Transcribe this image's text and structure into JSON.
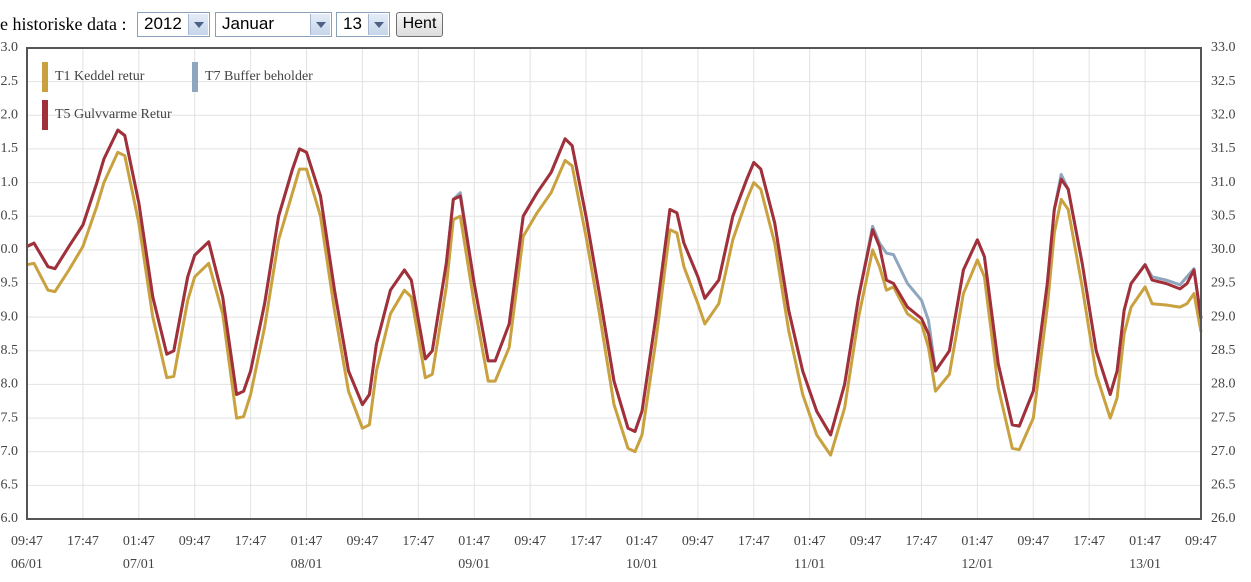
{
  "controls": {
    "label": "e historiske data :",
    "year": "2012",
    "month": "Januar",
    "day": "13",
    "button": "Hent"
  },
  "chart_data": {
    "type": "line",
    "x": [
      "06/01 09:47",
      "06/01 10:47",
      "06/01 12:47",
      "06/01 13:47",
      "06/01 15:47",
      "06/01 17:47",
      "06/01 19:47",
      "06/01 20:47",
      "06/01 22:47",
      "06/01 23:47",
      "07/01 01:47",
      "07/01 03:47",
      "07/01 05:47",
      "07/01 06:47",
      "07/01 08:47",
      "07/01 09:47",
      "07/01 11:47",
      "07/01 13:47",
      "07/01 15:47",
      "07/01 16:47",
      "07/01 17:47",
      "07/01 19:47",
      "07/01 21:47",
      "07/01 23:47",
      "08/01 00:47",
      "08/01 01:47",
      "08/01 03:47",
      "08/01 05:47",
      "08/01 07:47",
      "08/01 09:47",
      "08/01 10:47",
      "08/01 11:47",
      "08/01 13:47",
      "08/01 15:47",
      "08/01 16:47",
      "08/01 18:47",
      "08/01 19:47",
      "08/01 21:47",
      "08/01 22:47",
      "08/01 23:47",
      "09/01 01:47",
      "09/01 03:47",
      "09/01 04:47",
      "09/01 06:47",
      "09/01 08:47",
      "09/01 10:47",
      "09/01 12:47",
      "09/01 14:47",
      "09/01 15:47",
      "09/01 17:47",
      "09/01 19:47",
      "09/01 21:47",
      "09/01 23:47",
      "10/01 00:47",
      "10/01 01:47",
      "10/01 03:47",
      "10/01 05:47",
      "10/01 06:47",
      "10/01 07:47",
      "10/01 09:47",
      "10/01 10:47",
      "10/01 12:47",
      "10/01 14:47",
      "10/01 16:47",
      "10/01 17:47",
      "10/01 18:47",
      "10/01 20:47",
      "10/01 22:47",
      "11/01 00:47",
      "11/01 02:47",
      "11/01 04:47",
      "11/01 06:47",
      "11/01 08:47",
      "11/01 10:47",
      "11/01 11:47",
      "11/01 12:47",
      "11/01 13:47",
      "11/01 15:47",
      "11/01 17:47",
      "11/01 18:47",
      "11/01 19:47",
      "11/01 21:47",
      "11/01 23:47",
      "12/01 01:47",
      "12/01 02:47",
      "12/01 04:47",
      "12/01 06:47",
      "12/01 07:47",
      "12/01 09:47",
      "12/01 11:47",
      "12/01 12:47",
      "12/01 13:47",
      "12/01 14:47",
      "12/01 16:47",
      "12/01 18:47",
      "12/01 20:47",
      "12/01 21:47",
      "12/01 22:47",
      "12/01 23:47",
      "13/01 01:47",
      "13/01 02:47",
      "13/01 04:47",
      "13/01 06:47",
      "13/01 07:47",
      "13/01 08:47",
      "13/01 09:47"
    ],
    "series": [
      {
        "name": "T1 Keddel retur",
        "color": "#c9a13f",
        "values": [
          29.78,
          29.8,
          29.4,
          29.38,
          29.7,
          30.05,
          30.65,
          31.0,
          31.45,
          31.4,
          30.4,
          29.0,
          28.1,
          28.12,
          29.25,
          29.6,
          29.8,
          29.05,
          27.5,
          27.52,
          27.85,
          28.85,
          30.15,
          30.85,
          31.2,
          31.2,
          30.5,
          29.1,
          27.9,
          27.35,
          27.4,
          28.2,
          29.05,
          29.4,
          29.3,
          28.1,
          28.15,
          29.45,
          30.45,
          30.5,
          29.2,
          28.05,
          28.05,
          28.55,
          30.2,
          30.55,
          30.85,
          31.33,
          31.25,
          30.2,
          29.0,
          27.7,
          27.05,
          27.0,
          27.25,
          28.65,
          30.3,
          30.25,
          29.75,
          29.2,
          28.9,
          29.2,
          30.15,
          30.75,
          31.0,
          30.9,
          30.1,
          28.8,
          27.85,
          27.25,
          26.95,
          27.65,
          29.0,
          30.0,
          29.75,
          29.4,
          29.45,
          29.05,
          28.9,
          28.55,
          27.9,
          28.15,
          29.35,
          29.85,
          29.6,
          27.95,
          27.05,
          27.03,
          27.5,
          29.15,
          30.25,
          30.75,
          30.6,
          29.45,
          28.15,
          27.5,
          27.8,
          28.75,
          29.15,
          29.45,
          29.2,
          29.18,
          29.15,
          29.2,
          29.35,
          28.78
        ]
      },
      {
        "name": "T7 Buffer beholder",
        "color": "#8ea7bf",
        "values": [
          30.05,
          30.1,
          29.75,
          29.72,
          30.05,
          30.37,
          31.0,
          31.35,
          31.78,
          31.7,
          30.7,
          29.3,
          28.45,
          28.5,
          29.6,
          29.92,
          30.12,
          29.3,
          27.85,
          27.9,
          28.2,
          29.2,
          30.5,
          31.2,
          31.5,
          31.45,
          30.8,
          29.4,
          28.2,
          27.7,
          27.85,
          28.6,
          29.4,
          29.7,
          29.55,
          28.38,
          28.5,
          29.8,
          30.75,
          30.85,
          29.5,
          28.35,
          28.35,
          28.9,
          30.5,
          30.85,
          31.15,
          31.65,
          31.55,
          30.5,
          29.3,
          28.05,
          27.35,
          27.3,
          27.6,
          29.0,
          30.6,
          30.55,
          30.1,
          29.6,
          29.28,
          29.55,
          30.5,
          31.05,
          31.3,
          31.2,
          30.4,
          29.1,
          28.2,
          27.6,
          27.25,
          28.0,
          29.3,
          30.35,
          30.1,
          29.95,
          29.93,
          29.5,
          29.25,
          28.95,
          28.2,
          28.5,
          29.7,
          30.15,
          29.9,
          28.3,
          27.4,
          27.38,
          27.9,
          29.5,
          30.6,
          31.12,
          30.9,
          29.8,
          28.5,
          27.85,
          28.2,
          29.1,
          29.5,
          29.78,
          29.6,
          29.55,
          29.48,
          29.6,
          29.72,
          28.98
        ]
      },
      {
        "name": "T5 Gulvvarme Retur",
        "color": "#a2303a",
        "values": [
          30.05,
          30.1,
          29.75,
          29.72,
          30.05,
          30.37,
          31.0,
          31.35,
          31.78,
          31.7,
          30.7,
          29.3,
          28.45,
          28.5,
          29.6,
          29.92,
          30.12,
          29.3,
          27.85,
          27.9,
          28.2,
          29.2,
          30.5,
          31.2,
          31.5,
          31.45,
          30.8,
          29.4,
          28.2,
          27.7,
          27.85,
          28.6,
          29.4,
          29.7,
          29.55,
          28.38,
          28.5,
          29.8,
          30.75,
          30.8,
          29.5,
          28.35,
          28.35,
          28.9,
          30.5,
          30.85,
          31.15,
          31.65,
          31.55,
          30.5,
          29.3,
          28.05,
          27.35,
          27.3,
          27.6,
          29.0,
          30.6,
          30.55,
          30.1,
          29.6,
          29.28,
          29.55,
          30.5,
          31.05,
          31.3,
          31.2,
          30.4,
          29.1,
          28.2,
          27.6,
          27.25,
          28.0,
          29.3,
          30.3,
          30.05,
          29.55,
          29.5,
          29.15,
          28.98,
          28.75,
          28.2,
          28.5,
          29.7,
          30.15,
          29.9,
          28.3,
          27.4,
          27.38,
          27.9,
          29.5,
          30.6,
          31.05,
          30.9,
          29.8,
          28.5,
          27.85,
          28.2,
          29.1,
          29.5,
          29.78,
          29.55,
          29.5,
          29.42,
          29.5,
          29.7,
          28.98
        ]
      }
    ],
    "xlim": [
      "06/01 09:47",
      "13/01 09:47"
    ],
    "xticks": [
      {
        "value": "06/01 09:47",
        "label": "09:47"
      },
      {
        "value": "06/01 17:47",
        "label": "17:47"
      },
      {
        "value": "07/01 01:47",
        "label": "01:47"
      },
      {
        "value": "07/01 09:47",
        "label": "09:47"
      },
      {
        "value": "07/01 17:47",
        "label": "17:47"
      },
      {
        "value": "08/01 01:47",
        "label": "01:47"
      },
      {
        "value": "08/01 09:47",
        "label": "09:47"
      },
      {
        "value": "08/01 17:47",
        "label": "17:47"
      },
      {
        "value": "09/01 01:47",
        "label": "01:47"
      },
      {
        "value": "09/01 09:47",
        "label": "09:47"
      },
      {
        "value": "09/01 17:47",
        "label": "17:47"
      },
      {
        "value": "10/01 01:47",
        "label": "01:47"
      },
      {
        "value": "10/01 09:47",
        "label": "09:47"
      },
      {
        "value": "10/01 17:47",
        "label": "17:47"
      },
      {
        "value": "11/01 01:47",
        "label": "01:47"
      },
      {
        "value": "11/01 09:47",
        "label": "09:47"
      },
      {
        "value": "11/01 17:47",
        "label": "17:47"
      },
      {
        "value": "12/01 01:47",
        "label": "01:47"
      },
      {
        "value": "12/01 09:47",
        "label": "09:47"
      },
      {
        "value": "12/01 17:47",
        "label": "17:47"
      },
      {
        "value": "13/01 01:47",
        "label": "01:47"
      },
      {
        "value": "13/01 09:47",
        "label": "09:47"
      }
    ],
    "xdates": [
      {
        "value": "06/01 09:47",
        "label": "06/01"
      },
      {
        "value": "07/01 01:47",
        "label": "07/01"
      },
      {
        "value": "08/01 01:47",
        "label": "08/01"
      },
      {
        "value": "09/01 01:47",
        "label": "09/01"
      },
      {
        "value": "10/01 01:47",
        "label": "10/01"
      },
      {
        "value": "11/01 01:47",
        "label": "11/01"
      },
      {
        "value": "12/01 01:47",
        "label": "12/01"
      },
      {
        "value": "13/01 01:47",
        "label": "13/01"
      }
    ],
    "ylim": [
      26,
      33
    ],
    "yticks": [
      {
        "value": 26,
        "label": "26.0"
      },
      {
        "value": 26.5,
        "label": "26.5"
      },
      {
        "value": 27,
        "label": "27.0"
      },
      {
        "value": 27.5,
        "label": "27.5"
      },
      {
        "value": 28,
        "label": "28.0"
      },
      {
        "value": 28.5,
        "label": "28.5"
      },
      {
        "value": 29,
        "label": "29.0"
      },
      {
        "value": 29.5,
        "label": "29.5"
      },
      {
        "value": 30,
        "label": "30.0"
      },
      {
        "value": 30.5,
        "label": "30.5"
      },
      {
        "value": 31,
        "label": "31.0"
      },
      {
        "value": 31.5,
        "label": "31.5"
      },
      {
        "value": 32,
        "label": "32.0"
      },
      {
        "value": 32.5,
        "label": "32.5"
      },
      {
        "value": 33,
        "label": "33.0"
      }
    ],
    "grid": true,
    "legend": "upper left"
  }
}
